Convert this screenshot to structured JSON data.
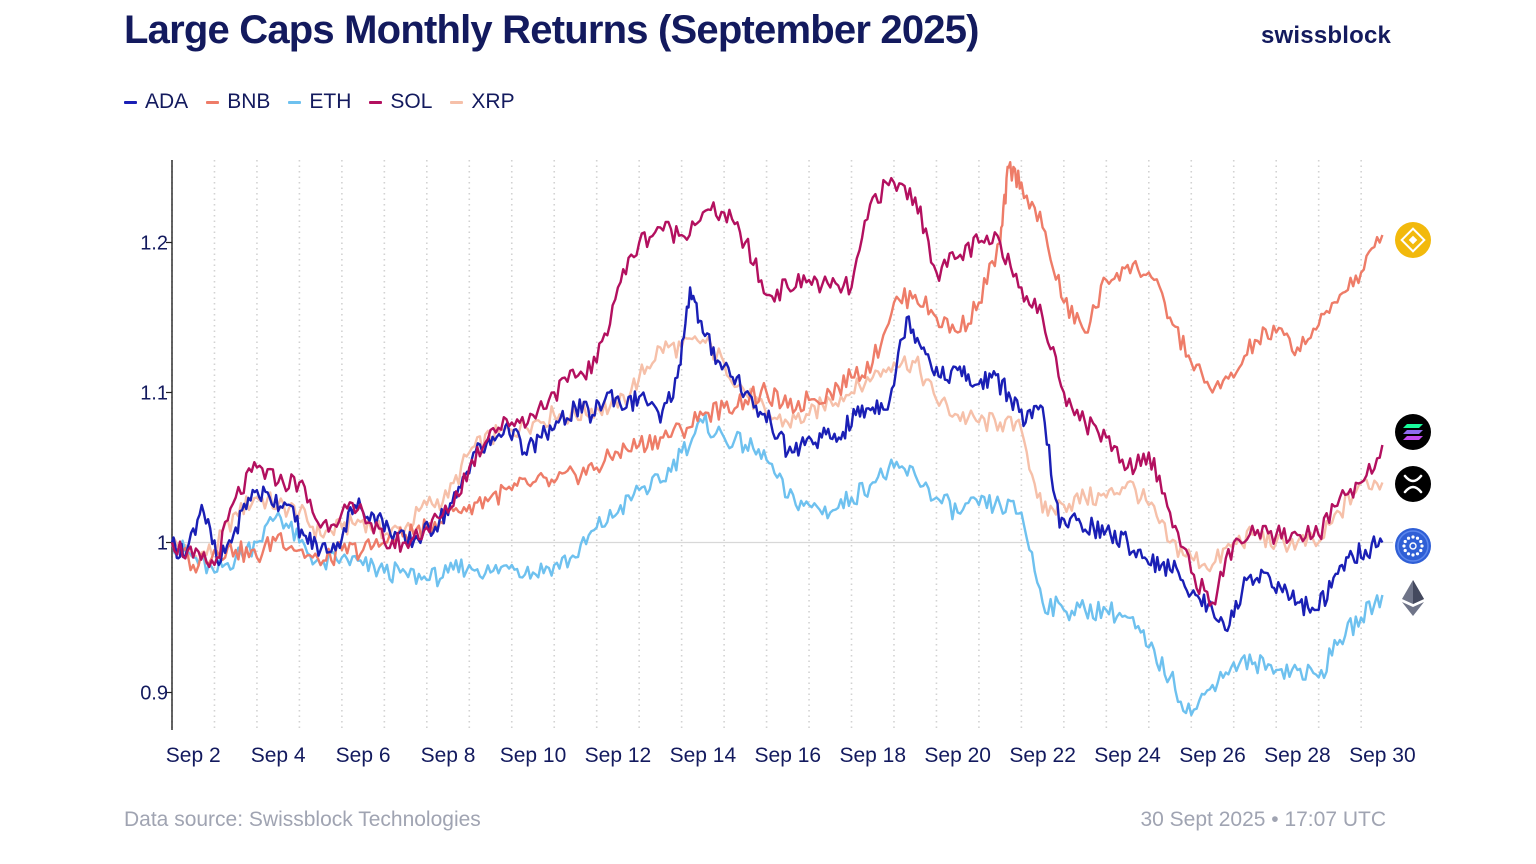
{
  "header": {
    "title": "Large Caps Monthly Returns (September 2025)",
    "brand": "swissblock"
  },
  "footer": {
    "source": "Data source: Swissblock Technologies",
    "timestamp": "30 Sept 2025 • 17:07 UTC"
  },
  "chart_data": {
    "type": "line",
    "title": "Large Caps Monthly Returns (September 2025)",
    "xlabel": "",
    "ylabel": "",
    "xlim": [
      1.5,
      30.25
    ],
    "ylim": [
      0.875,
      1.255
    ],
    "x_ticks": [
      2,
      4,
      6,
      8,
      10,
      12,
      14,
      16,
      18,
      20,
      22,
      24,
      26,
      28,
      30
    ],
    "x_tick_labels": [
      "Sep 2",
      "Sep 4",
      "Sep 6",
      "Sep 8",
      "Sep 10",
      "Sep 12",
      "Sep 14",
      "Sep 16",
      "Sep 18",
      "Sep 20",
      "Sep 22",
      "Sep 24",
      "Sep 26",
      "Sep 28",
      "Sep 30"
    ],
    "y_ticks": [
      0.9,
      1.0,
      1.1,
      1.2
    ],
    "y_tick_labels": [
      "0.9",
      "1",
      "1.1",
      "1.2"
    ],
    "baseline": 1.0,
    "grid": "vertical-dotted",
    "legend_position": "top-left",
    "series": [
      {
        "name": "ADA",
        "color": "#1a1fb5",
        "icon": "cardano-icon",
        "x": [
          1.5,
          1.8,
          2.2,
          2.6,
          3.0,
          3.4,
          3.8,
          4.2,
          4.6,
          5.0,
          5.4,
          5.8,
          6.2,
          6.6,
          7.0,
          7.4,
          7.8,
          8.2,
          8.6,
          9.0,
          9.4,
          9.8,
          10.2,
          10.6,
          11.0,
          11.4,
          11.8,
          12.2,
          12.6,
          13.0,
          13.4,
          13.7,
          14.0,
          14.4,
          14.8,
          15.2,
          15.6,
          16.0,
          16.4,
          16.8,
          17.2,
          17.6,
          18.0,
          18.4,
          18.8,
          19.2,
          19.6,
          20.0,
          20.4,
          20.8,
          21.2,
          21.6,
          22.0,
          22.4,
          22.8,
          23.2,
          23.6,
          24.0,
          24.4,
          24.8,
          25.2,
          25.6,
          26.0,
          26.4,
          26.8,
          27.2,
          27.6,
          28.0,
          28.4,
          28.8,
          29.2,
          29.6,
          30.0
        ],
        "y": [
          1.0,
          0.99,
          1.025,
          0.985,
          1.01,
          1.035,
          1.03,
          1.025,
          1.005,
          0.995,
          1.0,
          1.025,
          1.02,
          1.01,
          1.0,
          1.005,
          1.015,
          1.03,
          1.06,
          1.065,
          1.08,
          1.06,
          1.07,
          1.08,
          1.09,
          1.085,
          1.1,
          1.09,
          1.1,
          1.08,
          1.11,
          1.17,
          1.14,
          1.12,
          1.11,
          1.09,
          1.08,
          1.06,
          1.065,
          1.07,
          1.07,
          1.085,
          1.09,
          1.095,
          1.15,
          1.13,
          1.11,
          1.115,
          1.105,
          1.11,
          1.1,
          1.08,
          1.09,
          1.01,
          1.015,
          1.01,
          1.005,
          1.0,
          0.99,
          0.985,
          0.98,
          0.965,
          0.955,
          0.945,
          0.975,
          0.98,
          0.97,
          0.96,
          0.955,
          0.97,
          0.99,
          0.995,
          1.0
        ]
      },
      {
        "name": "BNB",
        "color": "#ee7c68",
        "icon": "bnb-icon",
        "x": [
          1.5,
          2.0,
          2.5,
          3.0,
          3.5,
          4.0,
          4.5,
          5.0,
          5.5,
          6.0,
          6.5,
          7.0,
          7.5,
          8.0,
          8.5,
          9.0,
          9.5,
          10.0,
          10.5,
          11.0,
          11.5,
          12.0,
          12.5,
          13.0,
          13.5,
          14.0,
          14.5,
          15.0,
          15.5,
          16.0,
          16.5,
          17.0,
          17.5,
          18.0,
          18.5,
          19.0,
          19.5,
          20.0,
          20.5,
          21.0,
          21.2,
          21.5,
          22.0,
          22.5,
          23.0,
          23.5,
          24.0,
          24.5,
          25.0,
          25.5,
          26.0,
          26.5,
          27.0,
          27.5,
          28.0,
          28.5,
          29.0,
          29.5,
          30.0
        ],
        "y": [
          1.0,
          0.985,
          0.995,
          0.995,
          0.99,
          1.005,
          0.995,
          0.985,
          0.995,
          0.995,
          1.0,
          1.005,
          1.01,
          1.02,
          1.025,
          1.03,
          1.035,
          1.04,
          1.04,
          1.045,
          1.05,
          1.06,
          1.065,
          1.07,
          1.075,
          1.085,
          1.09,
          1.095,
          1.1,
          1.09,
          1.095,
          1.1,
          1.11,
          1.12,
          1.16,
          1.165,
          1.15,
          1.14,
          1.16,
          1.2,
          1.25,
          1.24,
          1.21,
          1.16,
          1.14,
          1.175,
          1.185,
          1.18,
          1.15,
          1.12,
          1.1,
          1.11,
          1.135,
          1.14,
          1.13,
          1.145,
          1.165,
          1.18,
          1.205
        ]
      },
      {
        "name": "ETH",
        "color": "#6ec1ef",
        "icon": "ethereum-icon",
        "x": [
          1.5,
          2.0,
          2.5,
          3.0,
          3.5,
          4.0,
          4.5,
          5.0,
          5.5,
          6.0,
          6.5,
          7.0,
          7.5,
          8.0,
          8.5,
          9.0,
          9.5,
          10.0,
          10.5,
          11.0,
          11.5,
          12.0,
          12.5,
          13.0,
          13.5,
          14.0,
          14.5,
          15.0,
          15.5,
          16.0,
          16.5,
          17.0,
          17.5,
          18.0,
          18.5,
          19.0,
          19.5,
          20.0,
          20.5,
          21.0,
          21.5,
          22.0,
          22.5,
          23.0,
          23.5,
          24.0,
          24.5,
          25.0,
          25.5,
          26.0,
          26.5,
          27.0,
          27.5,
          28.0,
          28.5,
          29.0,
          29.5,
          30.0
        ],
        "y": [
          1.0,
          0.99,
          0.98,
          0.99,
          1.0,
          1.02,
          1.0,
          0.985,
          0.99,
          0.985,
          0.98,
          0.98,
          0.975,
          0.98,
          0.985,
          0.98,
          0.985,
          0.98,
          0.985,
          0.99,
          1.01,
          1.02,
          1.035,
          1.04,
          1.06,
          1.08,
          1.07,
          1.065,
          1.055,
          1.03,
          1.025,
          1.02,
          1.03,
          1.04,
          1.05,
          1.045,
          1.03,
          1.02,
          1.025,
          1.025,
          1.02,
          0.96,
          0.955,
          0.955,
          0.955,
          0.95,
          0.93,
          0.91,
          0.885,
          0.905,
          0.92,
          0.92,
          0.915,
          0.915,
          0.91,
          0.935,
          0.95,
          0.965
        ]
      },
      {
        "name": "SOL",
        "color": "#b3105f",
        "icon": "solana-icon",
        "x": [
          1.5,
          2.0,
          2.5,
          3.0,
          3.5,
          4.0,
          4.5,
          5.0,
          5.5,
          6.0,
          6.5,
          7.0,
          7.5,
          8.0,
          8.5,
          9.0,
          9.5,
          10.0,
          10.5,
          11.0,
          11.5,
          12.0,
          12.5,
          13.0,
          13.5,
          14.0,
          14.5,
          15.0,
          15.5,
          16.0,
          16.5,
          17.0,
          17.5,
          18.0,
          18.5,
          19.0,
          19.5,
          20.0,
          20.5,
          21.0,
          21.5,
          22.0,
          22.5,
          23.0,
          23.5,
          24.0,
          24.5,
          25.0,
          25.5,
          26.0,
          26.5,
          27.0,
          27.5,
          28.0,
          28.5,
          29.0,
          29.5,
          30.0
        ],
        "y": [
          1.0,
          0.99,
          0.985,
          1.03,
          1.05,
          1.04,
          1.04,
          1.01,
          1.02,
          1.02,
          1.0,
          1.0,
          1.01,
          1.02,
          1.05,
          1.075,
          1.08,
          1.085,
          1.1,
          1.11,
          1.12,
          1.17,
          1.2,
          1.21,
          1.205,
          1.22,
          1.22,
          1.2,
          1.165,
          1.17,
          1.175,
          1.17,
          1.17,
          1.23,
          1.24,
          1.23,
          1.18,
          1.19,
          1.2,
          1.2,
          1.17,
          1.15,
          1.1,
          1.08,
          1.07,
          1.05,
          1.06,
          1.02,
          0.98,
          0.96,
          1.0,
          1.005,
          1.005,
          1.005,
          1.005,
          1.03,
          1.04,
          1.065
        ]
      },
      {
        "name": "XRP",
        "color": "#f6c0a9",
        "icon": "xrp-icon",
        "x": [
          1.5,
          2.0,
          2.5,
          3.0,
          3.5,
          4.0,
          4.5,
          5.0,
          5.5,
          6.0,
          6.5,
          7.0,
          7.5,
          8.0,
          8.5,
          9.0,
          9.5,
          10.0,
          10.5,
          11.0,
          11.5,
          12.0,
          12.5,
          13.0,
          13.5,
          14.0,
          14.5,
          15.0,
          15.5,
          16.0,
          16.5,
          17.0,
          17.5,
          18.0,
          18.5,
          19.0,
          19.5,
          20.0,
          20.5,
          21.0,
          21.5,
          22.0,
          22.5,
          23.0,
          23.5,
          24.0,
          24.5,
          25.0,
          25.5,
          26.0,
          26.5,
          27.0,
          27.5,
          28.0,
          28.5,
          29.0,
          29.5,
          30.0
        ],
        "y": [
          1.0,
          0.99,
          0.995,
          1.02,
          1.03,
          1.025,
          1.02,
          1.005,
          1.01,
          1.015,
          1.005,
          1.01,
          1.025,
          1.03,
          1.06,
          1.07,
          1.075,
          1.08,
          1.085,
          1.085,
          1.09,
          1.09,
          1.11,
          1.13,
          1.13,
          1.135,
          1.12,
          1.1,
          1.085,
          1.08,
          1.085,
          1.095,
          1.1,
          1.11,
          1.12,
          1.12,
          1.095,
          1.085,
          1.08,
          1.08,
          1.075,
          1.02,
          1.025,
          1.03,
          1.03,
          1.04,
          1.025,
          1.0,
          0.99,
          0.985,
          1.0,
          1.005,
          1.0,
          1.0,
          1.0,
          1.02,
          1.04,
          1.04
        ]
      }
    ]
  }
}
